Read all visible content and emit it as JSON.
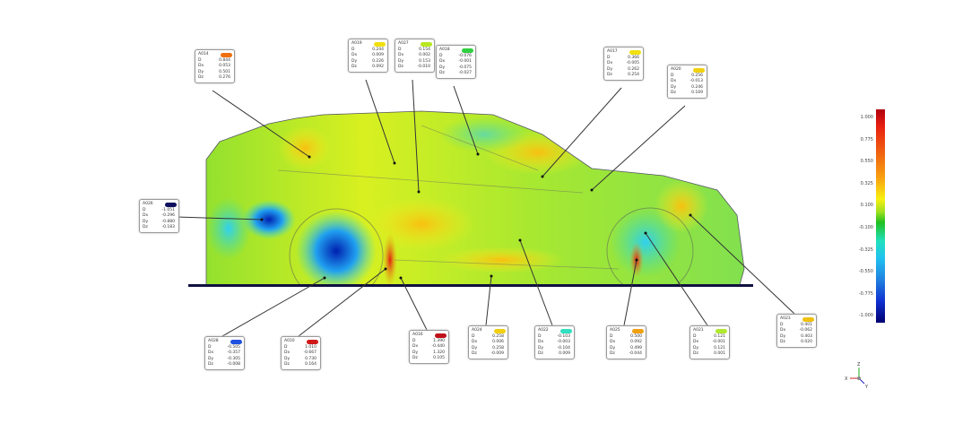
{
  "colors": {
    "ground": "#101040",
    "leader": "#333333"
  },
  "scale": {
    "labels": [
      "1.000",
      "0.775",
      "0.550",
      "0.325",
      "0.100",
      "-0.100",
      "-0.325",
      "-0.550",
      "-0.775",
      "-1.000"
    ]
  },
  "axes": {
    "x": "X",
    "y": "Y",
    "z": "Z"
  },
  "callouts": [
    {
      "id": "A014",
      "color": "#f07010",
      "D": "0.844",
      "Dx": "0.053",
      "Dy": "0.501",
      "Dz": "0.276"
    },
    {
      "id": "A019",
      "color": "#f0e010",
      "D": "0.244",
      "Dx": "0.009",
      "Dy": "0.226",
      "Dz": "0.092"
    },
    {
      "id": "A027",
      "color": "#b8e820",
      "D": "0.154",
      "Dx": "0.002",
      "Dy": "0.153",
      "Dz": "-0.010"
    },
    {
      "id": "A018",
      "color": "#30d040",
      "D": "-0.076",
      "Dx": "-0.001",
      "Dy": "-0.075",
      "Dz": "-0.027"
    },
    {
      "id": "A017",
      "color": "#f0e010",
      "D": "0.366",
      "Dx": "-0.005",
      "Dy": "0.262",
      "Dz": "0.254"
    },
    {
      "id": "A020",
      "color": "#f0d010",
      "D": "0.256",
      "Dx": "-0.013",
      "Dy": "0.246",
      "Dz": "0.169"
    },
    {
      "id": "A026",
      "color": "#101060",
      "D": "-1.051",
      "Dx": "-0.296",
      "Dy": "-0.880",
      "Dz": "-0.183"
    },
    {
      "id": "A028",
      "color": "#2050e0",
      "D": "-0.505",
      "Dx": "-0.357",
      "Dy": "-0.305",
      "Dz": "-0.008"
    },
    {
      "id": "A010",
      "color": "#d01818",
      "D": "1.010",
      "Dx": "-0.667",
      "Dy": "0.730",
      "Dz": "0.164"
    },
    {
      "id": "A016",
      "color": "#c01018",
      "D": "1.390",
      "Dx": "-0.440",
      "Dy": "1.320",
      "Dz": "0.105"
    },
    {
      "id": "A024",
      "color": "#f0d010",
      "D": "0.258",
      "Dx": "0.006",
      "Dy": "0.258",
      "Dz": "-0.009"
    },
    {
      "id": "A022",
      "color": "#30e0c0",
      "D": "-0.103",
      "Dx": "-0.003",
      "Dy": "-0.104",
      "Dz": "0.009"
    },
    {
      "id": "A025",
      "color": "#f0a010",
      "D": "0.500",
      "Dx": "0.092",
      "Dy": "0.499",
      "Dz": "-0.044"
    },
    {
      "id": "A021",
      "color": "#b0e830",
      "D": "0.121",
      "Dx": "-0.001",
      "Dy": "0.121",
      "Dz": "0.001"
    },
    {
      "id": "A023",
      "color": "#f0c010",
      "D": "0.401",
      "Dx": "-0.062",
      "Dy": "0.403",
      "Dz": "0.020"
    }
  ]
}
